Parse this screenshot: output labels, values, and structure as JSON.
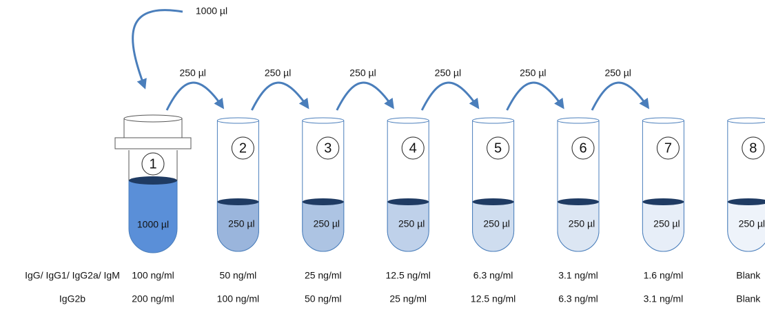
{
  "source": {
    "volume": "1000 µl"
  },
  "transfers": [
    "250 µl",
    "250 µl",
    "250 µl",
    "250 µl",
    "250 µl",
    "250 µl"
  ],
  "tubes": [
    {
      "number": "1",
      "volume": "1000 µl"
    },
    {
      "number": "2",
      "volume": "250 µl"
    },
    {
      "number": "3",
      "volume": "250 µl"
    },
    {
      "number": "4",
      "volume": "250 µl"
    },
    {
      "number": "5",
      "volume": "250 µl"
    },
    {
      "number": "6",
      "volume": "250 µl"
    },
    {
      "number": "7",
      "volume": "250 µl"
    },
    {
      "number": "8",
      "volume": "250 µl"
    }
  ],
  "rows": [
    {
      "label": "IgG/ IgG1/ IgG2a/ IgM",
      "values": [
        "100 ng/ml",
        "50 ng/ml",
        "25 ng/ml",
        "12.5 ng/ml",
        "6.3 ng/ml",
        "3.1 ng/ml",
        "1.6 ng/ml",
        "Blank"
      ]
    },
    {
      "label": "IgG2b",
      "values": [
        "200 ng/ml",
        "100 ng/ml",
        "50 ng/ml",
        "25 ng/ml",
        "12.5 ng/ml",
        "6.3 ng/ml",
        "3.1 ng/ml",
        "Blank"
      ]
    }
  ]
}
